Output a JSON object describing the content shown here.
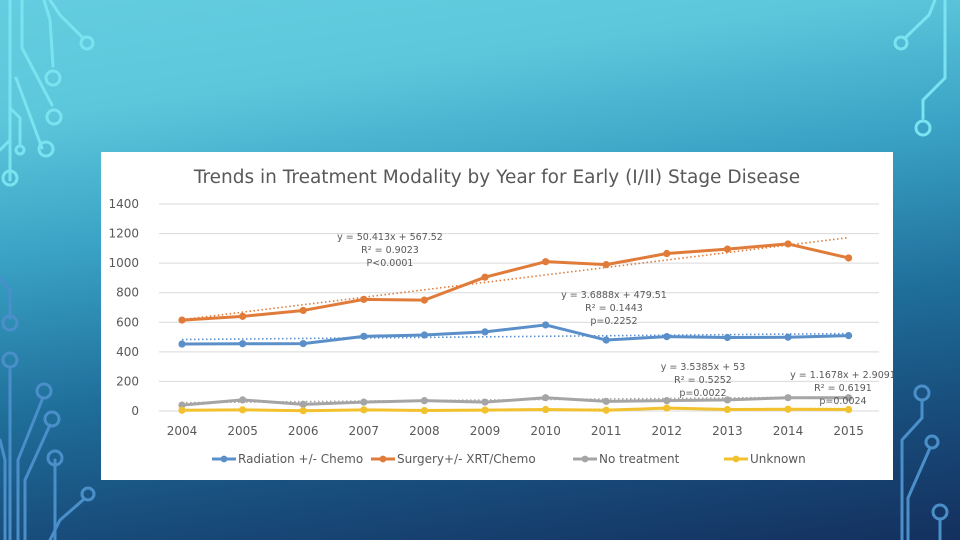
{
  "slide": {
    "background_colors": [
      "#64cde0",
      "#1f6e9a",
      "#14305e"
    ],
    "circuit_color_light": "#7be3f0",
    "circuit_color_dark": "#4a8fc9"
  },
  "chart_data": {
    "type": "line",
    "title": "Trends in Treatment Modality by Year for Early (I/II) Stage Disease",
    "xlabel": "",
    "ylabel": "",
    "categories": [
      "2004",
      "2005",
      "2006",
      "2007",
      "2008",
      "2009",
      "2010",
      "2011",
      "2012",
      "2013",
      "2014",
      "2015"
    ],
    "ylim": [
      0,
      1400
    ],
    "yticks": [
      0,
      200,
      400,
      600,
      800,
      1000,
      1200,
      1400
    ],
    "ytick_labels": [
      "0",
      "200",
      "400",
      "600",
      "800",
      "1000",
      "1200",
      "1400"
    ],
    "grid": true,
    "legend_position": "bottom",
    "series": [
      {
        "name": "Radiation +/- Chemo",
        "color": "#5b8fc9",
        "values": [
          453,
          455,
          456,
          505,
          514,
          535,
          582,
          480,
          503,
          497,
          499,
          510
        ],
        "trendline": {
          "slope": 3.6888,
          "intercept": 479.51
        },
        "annotation": [
          "y = 3.6888x + 479.51",
          "R² = 0.1443",
          "p=0.2252"
        ]
      },
      {
        "name": "Surgery+/- XRT/Chemo",
        "color": "#e07b39",
        "values": [
          615,
          640,
          680,
          755,
          750,
          905,
          1010,
          990,
          1065,
          1095,
          1130,
          1035
        ],
        "trendline": {
          "slope": 50.413,
          "intercept": 567.52
        },
        "annotation": [
          "y = 50.413x + 567.52",
          "R² = 0.9023",
          "P<0.0001"
        ]
      },
      {
        "name": "No treatment",
        "color": "#a5a5a5",
        "values": [
          40,
          75,
          45,
          60,
          70,
          60,
          90,
          65,
          70,
          75,
          90,
          90
        ],
        "trendline": {
          "slope": 3.5385,
          "intercept": 53
        },
        "annotation": [
          "y = 3.5385x + 53",
          "R² = 0.5252",
          "p=0.0022"
        ]
      },
      {
        "name": "Unknown",
        "color": "#f2c12e",
        "values": [
          5,
          8,
          2,
          8,
          3,
          6,
          10,
          5,
          20,
          10,
          12,
          10
        ],
        "trendline": {
          "slope": 1.1678,
          "intercept": 2.9091
        },
        "annotation": [
          "y = 1.1678x + 2.9091",
          "R² = 0.6191",
          "p=0.0024"
        ]
      }
    ]
  }
}
